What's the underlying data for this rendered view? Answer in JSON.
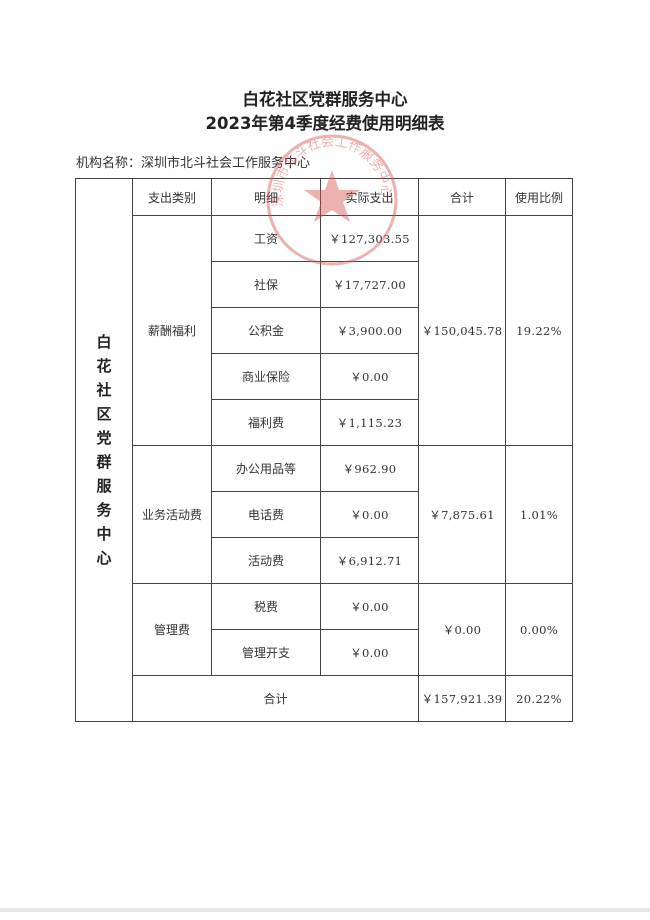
{
  "title_line1": "白花社区党群服务中心",
  "title_line2": "2023年第4季度经费使用明细表",
  "org_label": "机构名称：",
  "org_name": "深圳市北斗社会工作服务中心",
  "stamp_text": "深圳市北斗社会工作服务中心",
  "stamp_color": "#d9534f",
  "side_label": "白花社区党群服务中心",
  "headers": {
    "category": "支出类别",
    "detail": "明细",
    "actual": "实际支出",
    "subtotal": "合计",
    "ratio": "使用比例"
  },
  "groups": [
    {
      "category": "薪酬福利",
      "subtotal": "￥150,045.78",
      "ratio": "19.22%",
      "items": [
        {
          "detail": "工资",
          "actual": "￥127,303.55"
        },
        {
          "detail": "社保",
          "actual": "￥17,727.00"
        },
        {
          "detail": "公积金",
          "actual": "￥3,900.00"
        },
        {
          "detail": "商业保险",
          "actual": "￥0.00"
        },
        {
          "detail": "福利费",
          "actual": "￥1,115.23"
        }
      ]
    },
    {
      "category": "业务活动费",
      "subtotal": "￥7,875.61",
      "ratio": "1.01%",
      "items": [
        {
          "detail": "办公用品等",
          "actual": "￥962.90"
        },
        {
          "detail": "电话费",
          "actual": "￥0.00"
        },
        {
          "detail": "活动费",
          "actual": "￥6,912.71"
        }
      ]
    },
    {
      "category": "管理费",
      "subtotal": "￥0.00",
      "ratio": "0.00%",
      "items": [
        {
          "detail": "税费",
          "actual": "￥0.00"
        },
        {
          "detail": "管理开支",
          "actual": "￥0.00"
        }
      ]
    }
  ],
  "total": {
    "label": "合计",
    "amount": "￥157,921.39",
    "ratio": "20.22%"
  }
}
